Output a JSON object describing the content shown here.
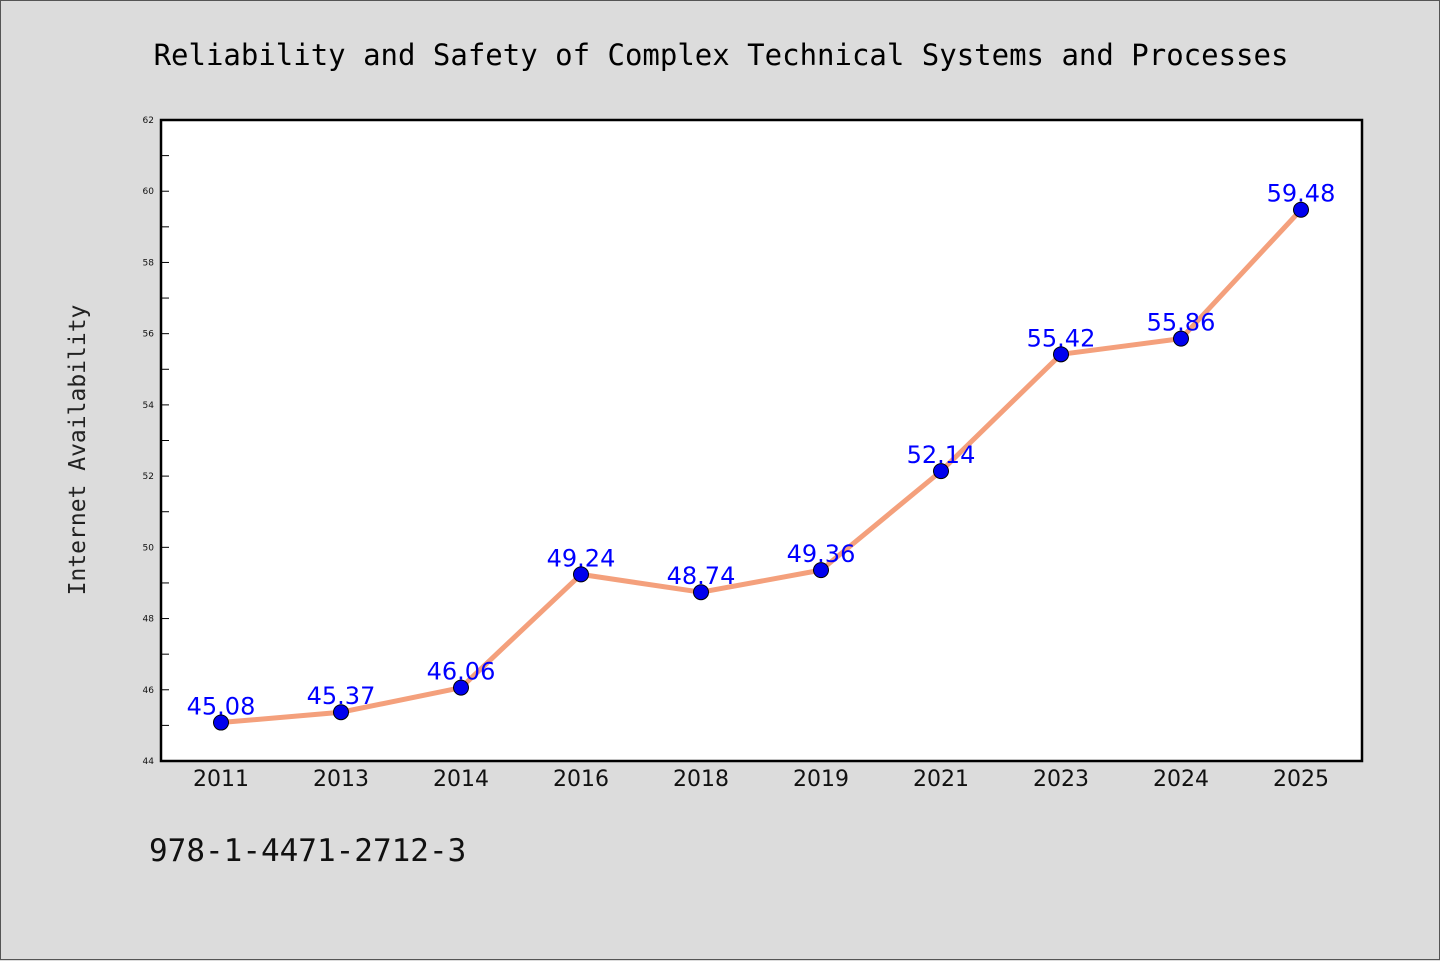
{
  "chart_data": {
    "type": "line",
    "title": "Reliability and Safety of Complex Technical Systems and Processes",
    "xlabel": "",
    "ylabel": "Internet Availability",
    "categories": [
      "2011",
      "2013",
      "2014",
      "2016",
      "2018",
      "2019",
      "2021",
      "2023",
      "2024",
      "2025"
    ],
    "series": [
      {
        "values": [
          45.08,
          45.37,
          46.06,
          49.24,
          48.74,
          49.36,
          52.14,
          55.42,
          55.86,
          59.48
        ],
        "data_labels": [
          "45.08",
          "45.37",
          "46.06",
          "49.24",
          "48.74",
          "49.36",
          "52.14",
          "55.42",
          "55.86",
          "59.48"
        ],
        "line_color": "#f4a07c",
        "marker_color": "#0000ee"
      }
    ],
    "ylim": [
      44,
      62
    ],
    "yticks": [
      "44",
      "46",
      "48",
      "50",
      "52",
      "54",
      "56",
      "58",
      "60",
      "62"
    ],
    "grid": false,
    "legend": "none"
  },
  "footer": {
    "isbn": "978-1-4471-2712-3"
  },
  "colors": {
    "background": "#dcdcdc",
    "plot_background": "#ffffff",
    "label_color": "#0000ff"
  }
}
